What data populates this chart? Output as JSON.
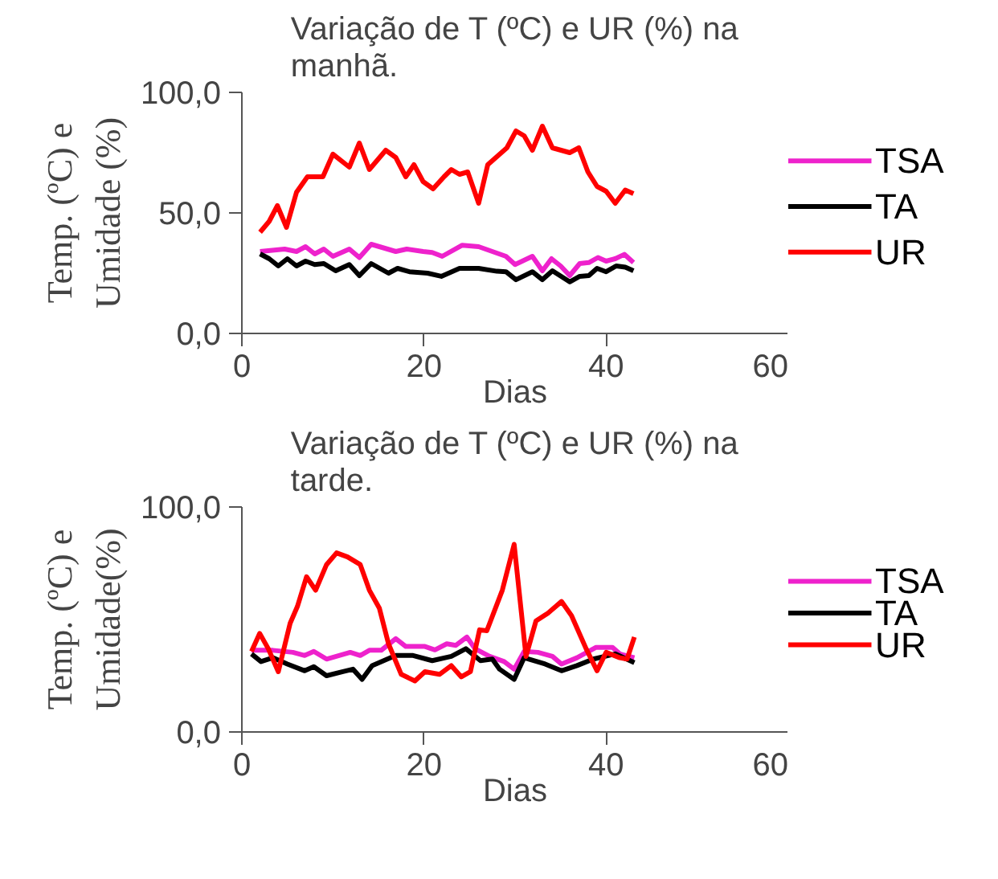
{
  "chart_data": [
    {
      "type": "line",
      "title": "Variação de T (ºC) e UR (%) na manhã.",
      "xlabel": "Dias",
      "ylabel": "Temp. (ºC) e Umidade (%)",
      "xlim": [
        0,
        60
      ],
      "ylim": [
        0,
        100
      ],
      "xticks": [
        0,
        20,
        40,
        60
      ],
      "yticks": [
        {
          "value": 0,
          "label": "0,0"
        },
        {
          "value": 50,
          "label": "50,0"
        },
        {
          "value": 100,
          "label": "100,0"
        }
      ],
      "grid": false,
      "legend": "right",
      "marker": "none",
      "series": [
        {
          "name": "TSA",
          "color": "#ee22cc",
          "x": [
            2,
            4.7,
            6,
            7,
            8,
            9,
            10,
            11.8,
            12.9,
            14.2,
            16.9,
            18.1,
            19.9,
            20.9,
            22,
            24.2,
            26,
            29,
            30,
            31.9,
            33,
            34,
            35,
            36,
            37.1,
            38.1,
            39.1,
            40,
            41,
            42,
            43
          ],
          "values": [
            34,
            35,
            34,
            36,
            33,
            35,
            32,
            35,
            31.5,
            37,
            34,
            35,
            34,
            33.6,
            32,
            36.6,
            36,
            32,
            28.6,
            32,
            26,
            31,
            28,
            24,
            29,
            29.4,
            31.5,
            30,
            31,
            32.8,
            29.4
          ]
        },
        {
          "name": "TA",
          "color": "#000000",
          "x": [
            2,
            3,
            4,
            5,
            6,
            7,
            8,
            9,
            10.3,
            11.8,
            12.9,
            14.2,
            16.1,
            17.1,
            18.4,
            20.4,
            21.9,
            23.9,
            26,
            28,
            29,
            30.1,
            31.9,
            33,
            34.1,
            36,
            37.1,
            38.1,
            39,
            40,
            41.1,
            42.1,
            43
          ],
          "values": [
            33,
            31,
            28,
            31,
            28,
            30,
            28.6,
            29,
            26,
            28.6,
            24,
            29,
            25,
            27,
            25.6,
            25,
            23.7,
            27,
            27,
            25.8,
            25.6,
            22.3,
            25.6,
            22.3,
            26,
            21.4,
            23.7,
            24,
            27,
            25.6,
            28,
            27.5,
            26
          ]
        },
        {
          "name": "UR",
          "color": "#ff0000",
          "x": [
            2,
            3,
            3.9,
            4.9,
            6,
            7.2,
            8.9,
            10,
            11.8,
            12.9,
            14,
            15.8,
            16.9,
            18,
            18.9,
            19.9,
            21,
            22.2,
            23,
            23.9,
            24.8,
            26,
            27,
            28.2,
            29.1,
            30.1,
            31,
            31.9,
            33,
            34.1,
            36,
            37,
            38,
            39,
            40,
            41,
            42.1,
            43
          ],
          "values": [
            42,
            46.5,
            53,
            44,
            58.6,
            65,
            65,
            74.4,
            69,
            79,
            68,
            76,
            73,
            65,
            70,
            63,
            60,
            65,
            68,
            66,
            67,
            54,
            70,
            74,
            77,
            84,
            82,
            76,
            86,
            77,
            75,
            77,
            67,
            61,
            59,
            54,
            59.5,
            58
          ]
        }
      ]
    },
    {
      "type": "line",
      "title": "Variação de T (ºC) e UR (%) na tarde.",
      "xlabel": "Dias",
      "ylabel": "Temp. (ºC) e Umidade(%)",
      "xlim": [
        0,
        60
      ],
      "ylim": [
        0,
        100
      ],
      "xticks": [
        0,
        20,
        40,
        60
      ],
      "yticks": [
        {
          "value": 0,
          "label": "0,0"
        },
        {
          "value": 100,
          "label": "100,0"
        }
      ],
      "grid": false,
      "legend": "right",
      "marker": "none",
      "series": [
        {
          "name": "TSA",
          "color": "#ee22cc",
          "x": [
            1.06,
            3.4,
            5.6,
            6.9,
            7.9,
            9.3,
            11.9,
            13,
            14,
            15.3,
            16.9,
            18,
            20.1,
            21.2,
            22.5,
            23.5,
            24.7,
            25.6,
            27.2,
            28.8,
            29.9,
            31,
            32.5,
            34.1,
            35.1,
            36.8,
            38.9,
            40.7,
            41.5,
            43.1
          ],
          "values": [
            36.3,
            36.3,
            35.4,
            34,
            35.8,
            32.4,
            35.4,
            34,
            36.3,
            36.3,
            41.5,
            38,
            38,
            36.5,
            39.2,
            38.5,
            42.2,
            37,
            33.6,
            31.3,
            27.9,
            35.8,
            35.4,
            33.6,
            30.2,
            33,
            37.6,
            37.6,
            34.7,
            33
          ]
        },
        {
          "name": "TA",
          "color": "#000000",
          "x": [
            1.06,
            2.1,
            3.4,
            5,
            6.9,
            7.9,
            9.3,
            11.1,
            12.2,
            13.2,
            14.3,
            16.9,
            18.8,
            20.9,
            23,
            24.6,
            26.2,
            27.5,
            28.3,
            29.9,
            31,
            33.3,
            35.1,
            36.8,
            38.6,
            41,
            43.1
          ],
          "values": [
            34.7,
            31.3,
            33,
            30.2,
            27.2,
            29,
            25,
            26.8,
            27.9,
            23.4,
            29.5,
            34,
            34,
            31.7,
            33.6,
            37,
            31.7,
            32.4,
            27.9,
            23.4,
            33,
            30.2,
            27.2,
            29.5,
            32.4,
            34.7,
            30.8
          ]
        },
        {
          "name": "UR",
          "color": "#ff0000",
          "x": [
            1.06,
            1.96,
            2.9,
            4,
            5.3,
            6.1,
            7.1,
            8.1,
            9.3,
            10.4,
            11.6,
            13,
            14,
            15.1,
            16.1,
            17.5,
            19,
            20.1,
            21.7,
            23,
            24.1,
            25.1,
            26.1,
            26.9,
            28.6,
            29.9,
            31.2,
            32.3,
            33.6,
            35.1,
            36.2,
            37.8,
            39,
            40,
            41.5,
            42.3,
            43.1
          ],
          "values": [
            35.8,
            43.8,
            37,
            26.8,
            48.3,
            55.8,
            69,
            63,
            74.4,
            79.6,
            77.8,
            74.4,
            63,
            55,
            39.2,
            25.6,
            22.7,
            26.8,
            25.6,
            29.5,
            24.5,
            26.8,
            45.4,
            45,
            63,
            83.4,
            33.6,
            49.4,
            52.8,
            58,
            51.7,
            37,
            27.2,
            35.4,
            33,
            32.4,
            42.2
          ]
        }
      ]
    }
  ]
}
